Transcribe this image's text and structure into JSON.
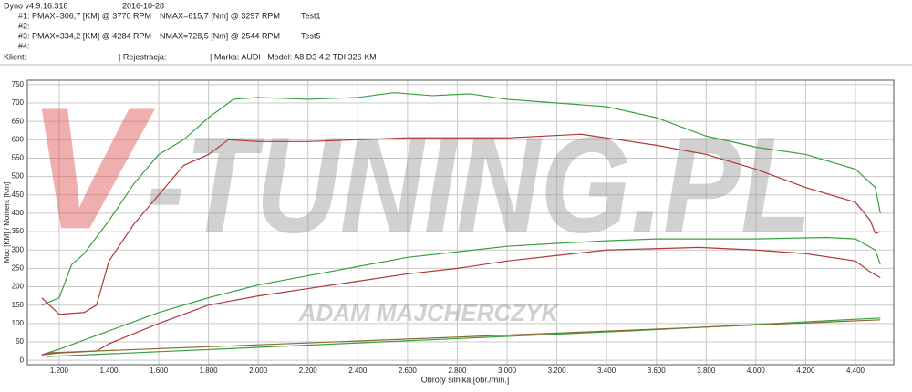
{
  "header": {
    "app": "Dyno v4.9.16.318",
    "date": "2016-10-28",
    "runs": [
      {
        "label": "#1: PMAX=306,7 [KM] @ 3770 RPM",
        "nmax": "NMAX=615,7 [Nm] @ 3297 RPM",
        "name": "Test1"
      },
      {
        "label": "#2:"
      },
      {
        "label": "#3: PMAX=334,2 [KM] @ 4284 RPM",
        "nmax": "NMAX=728,5 [Nm] @ 2544 RPM",
        "name": "Test5"
      },
      {
        "label": "#4:"
      }
    ],
    "client": "Klient:",
    "registration": "| Rejestracja:",
    "model": "| Marka: AUDI | Model: A8 D3 4.2 TDI 326 KM"
  },
  "watermark": {
    "initial": "V",
    "rest": "-TUNING.PL",
    "author": "ADAM MAJCHERCZYK"
  },
  "chart_data": {
    "type": "line",
    "xlabel": "Obroty silnika [obr./min.]",
    "ylabel": "Moc [KM] / Moment [Nm]",
    "xlim": [
      1072,
      4554
    ],
    "ylim": [
      -12,
      762
    ],
    "grid": true,
    "xticks": [
      {
        "value": 1200,
        "label": "1.200"
      },
      {
        "value": 1400,
        "label": "1.400"
      },
      {
        "value": 1600,
        "label": "1.600"
      },
      {
        "value": 1800,
        "label": "1.800"
      },
      {
        "value": 2000,
        "label": "2.000"
      },
      {
        "value": 2200,
        "label": "2.200"
      },
      {
        "value": 2400,
        "label": "2.400"
      },
      {
        "value": 2600,
        "label": "2.600"
      },
      {
        "value": 2800,
        "label": "2.800"
      },
      {
        "value": 3000,
        "label": "3.000"
      },
      {
        "value": 3200,
        "label": "3.200"
      },
      {
        "value": 3400,
        "label": "3.400"
      },
      {
        "value": 3600,
        "label": "3.600"
      },
      {
        "value": 3800,
        "label": "3.800"
      },
      {
        "value": 4000,
        "label": "4.000"
      },
      {
        "value": 4200,
        "label": "4.200"
      },
      {
        "value": 4400,
        "label": "4.400"
      }
    ],
    "yticks": [
      0,
      50,
      100,
      150,
      200,
      250,
      300,
      350,
      400,
      450,
      500,
      550,
      600,
      650,
      700,
      750
    ],
    "series": [
      {
        "color": "#3aa040",
        "x": [
          1130,
          1200,
          1250,
          1300,
          1400,
          1500,
          1600,
          1700,
          1800,
          1900,
          2000,
          2200,
          2400,
          2544,
          2700,
          2850,
          3000,
          3200,
          3400,
          3600,
          3800,
          4000,
          4200,
          4400,
          4480,
          4500
        ],
        "values": [
          150,
          170,
          260,
          290,
          380,
          480,
          560,
          600,
          660,
          710,
          715,
          710,
          715,
          728,
          720,
          725,
          710,
          700,
          690,
          660,
          610,
          580,
          560,
          520,
          470,
          400
        ]
      },
      {
        "color": "#b03838",
        "x": [
          1130,
          1200,
          1300,
          1350,
          1400,
          1500,
          1600,
          1700,
          1800,
          1880,
          2000,
          2200,
          2400,
          2600,
          2800,
          3000,
          3297,
          3400,
          3600,
          3800,
          4000,
          4200,
          4400,
          4460,
          4480,
          4500
        ],
        "values": [
          170,
          125,
          130,
          150,
          270,
          370,
          450,
          530,
          560,
          600,
          595,
          595,
          600,
          605,
          605,
          605,
          615,
          605,
          585,
          560,
          520,
          470,
          430,
          380,
          345,
          350
        ]
      },
      {
        "color": "#3aa040",
        "x": [
          1130,
          1200,
          1300,
          1400,
          1600,
          1800,
          2000,
          2200,
          2400,
          2600,
          2800,
          3000,
          3200,
          3400,
          3600,
          3800,
          4000,
          4284,
          4400,
          4480,
          4500
        ],
        "values": [
          15,
          30,
          55,
          80,
          130,
          170,
          205,
          230,
          255,
          280,
          295,
          310,
          318,
          325,
          330,
          330,
          330,
          334,
          330,
          300,
          260
        ]
      },
      {
        "color": "#b03838",
        "x": [
          1130,
          1200,
          1350,
          1400,
          1600,
          1800,
          2000,
          2200,
          2400,
          2600,
          2800,
          3000,
          3200,
          3400,
          3770,
          4000,
          4200,
          4400,
          4460,
          4500
        ],
        "values": [
          15,
          20,
          25,
          45,
          100,
          150,
          175,
          195,
          215,
          235,
          250,
          270,
          285,
          300,
          307,
          300,
          290,
          270,
          240,
          225
        ]
      },
      {
        "color": "#3aa040",
        "x": [
          1150,
          2500,
          3500,
          4500
        ],
        "values": [
          10,
          50,
          80,
          115
        ]
      },
      {
        "color": "#8a6a30",
        "x": [
          1150,
          2500,
          3500,
          4500
        ],
        "values": [
          20,
          55,
          82,
          110
        ]
      }
    ]
  }
}
